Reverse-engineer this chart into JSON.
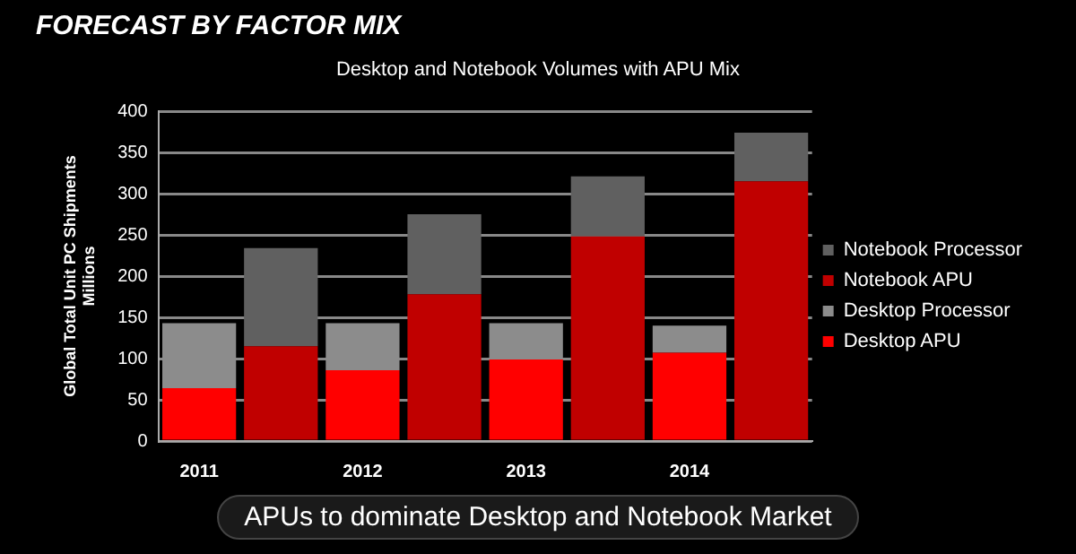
{
  "chart_data": {
    "type": "bar",
    "title": "FORECAST BY FACTOR MIX",
    "subtitle": "Desktop and Notebook Volumes with APU Mix",
    "ylabel": "Global Total Unit PC Shipments\nMillions",
    "categories": [
      "2011",
      null,
      "2012",
      null,
      "2013",
      null,
      "2014",
      null
    ],
    "stacked": true,
    "series": [
      {
        "name": "Desktop APU",
        "color": "#ff0000",
        "values": [
          64,
          null,
          86,
          null,
          99,
          null,
          107,
          null
        ]
      },
      {
        "name": "Desktop Processor",
        "color": "#8c8c8c",
        "values": [
          79,
          null,
          57,
          null,
          44,
          null,
          33,
          null
        ]
      },
      {
        "name": "Notebook APU",
        "color": "#c00000",
        "values": [
          null,
          115,
          null,
          178,
          null,
          248,
          null,
          315
        ]
      },
      {
        "name": "Notebook Processor",
        "color": "#606060",
        "values": [
          null,
          119,
          null,
          97,
          null,
          73,
          null,
          59
        ]
      }
    ],
    "ylim": [
      0,
      400
    ],
    "yticks": [
      0,
      50,
      100,
      150,
      200,
      250,
      300,
      350,
      400
    ],
    "grid": "y",
    "legend": "right",
    "annotations": [
      "APUs to dominate Desktop and Notebook Market"
    ]
  }
}
